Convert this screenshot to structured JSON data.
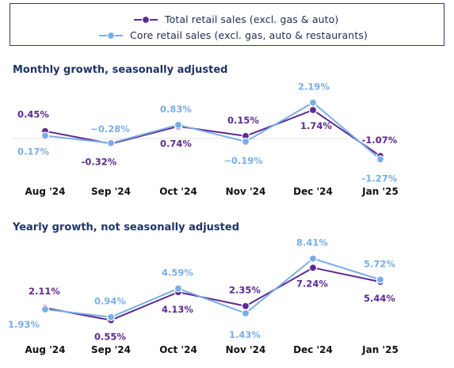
{
  "colors": {
    "total": "#5b2a91",
    "core": "#79aee8",
    "title": "#1f3566",
    "legend_border": "#2d3e6e"
  },
  "legend": {
    "total": "Total retail sales (excl. gas & auto)",
    "core": "Core retail sales (excl. gas, auto & restaurants)"
  },
  "chart_data": [
    {
      "type": "line",
      "title": "Monthly growth, seasonally adjusted",
      "categories": [
        "Aug '24",
        "Sep '24",
        "Oct '24",
        "Nov '24",
        "Dec '24",
        "Jan '25"
      ],
      "series": [
        {
          "name": "Total retail sales (excl. gas & auto)",
          "values": [
            0.45,
            -0.32,
            0.74,
            0.15,
            1.74,
            -1.07
          ],
          "labels": [
            "0.45%",
            "-0.32%",
            "0.74%",
            "0.15%",
            "1.74%",
            "-1.07%"
          ]
        },
        {
          "name": "Core retail sales (excl. gas, auto & restaurants)",
          "values": [
            0.17,
            -0.28,
            0.83,
            -0.19,
            2.19,
            -1.27
          ],
          "labels": [
            "0.17%",
            "−0.28%",
            "0.83%",
            "−0.19%",
            "2.19%",
            "-1.27%"
          ]
        }
      ],
      "zero_line": true
    },
    {
      "type": "line",
      "title": "Yearly growth, not seasonally adjusted",
      "categories": [
        "Aug '24",
        "Sep '24",
        "Oct '24",
        "Nov '24",
        "Dec '24",
        "Jan '25"
      ],
      "series": [
        {
          "name": "Total retail sales (excl. gas & auto)",
          "values": [
            2.11,
            0.55,
            4.13,
            2.35,
            7.24,
            5.44
          ],
          "labels": [
            "2.11%",
            "0.55%",
            "4.13%",
            "2.35%",
            "7.24%",
            "5.44%"
          ]
        },
        {
          "name": "Core retail sales (excl. gas, auto & restaurants)",
          "values": [
            1.93,
            0.94,
            4.59,
            1.43,
            8.41,
            5.72
          ],
          "labels": [
            "1.93%",
            "0.94%",
            "4.59%",
            "1.43%",
            "8.41%",
            "5.72%"
          ]
        }
      ],
      "zero_line": false
    }
  ]
}
